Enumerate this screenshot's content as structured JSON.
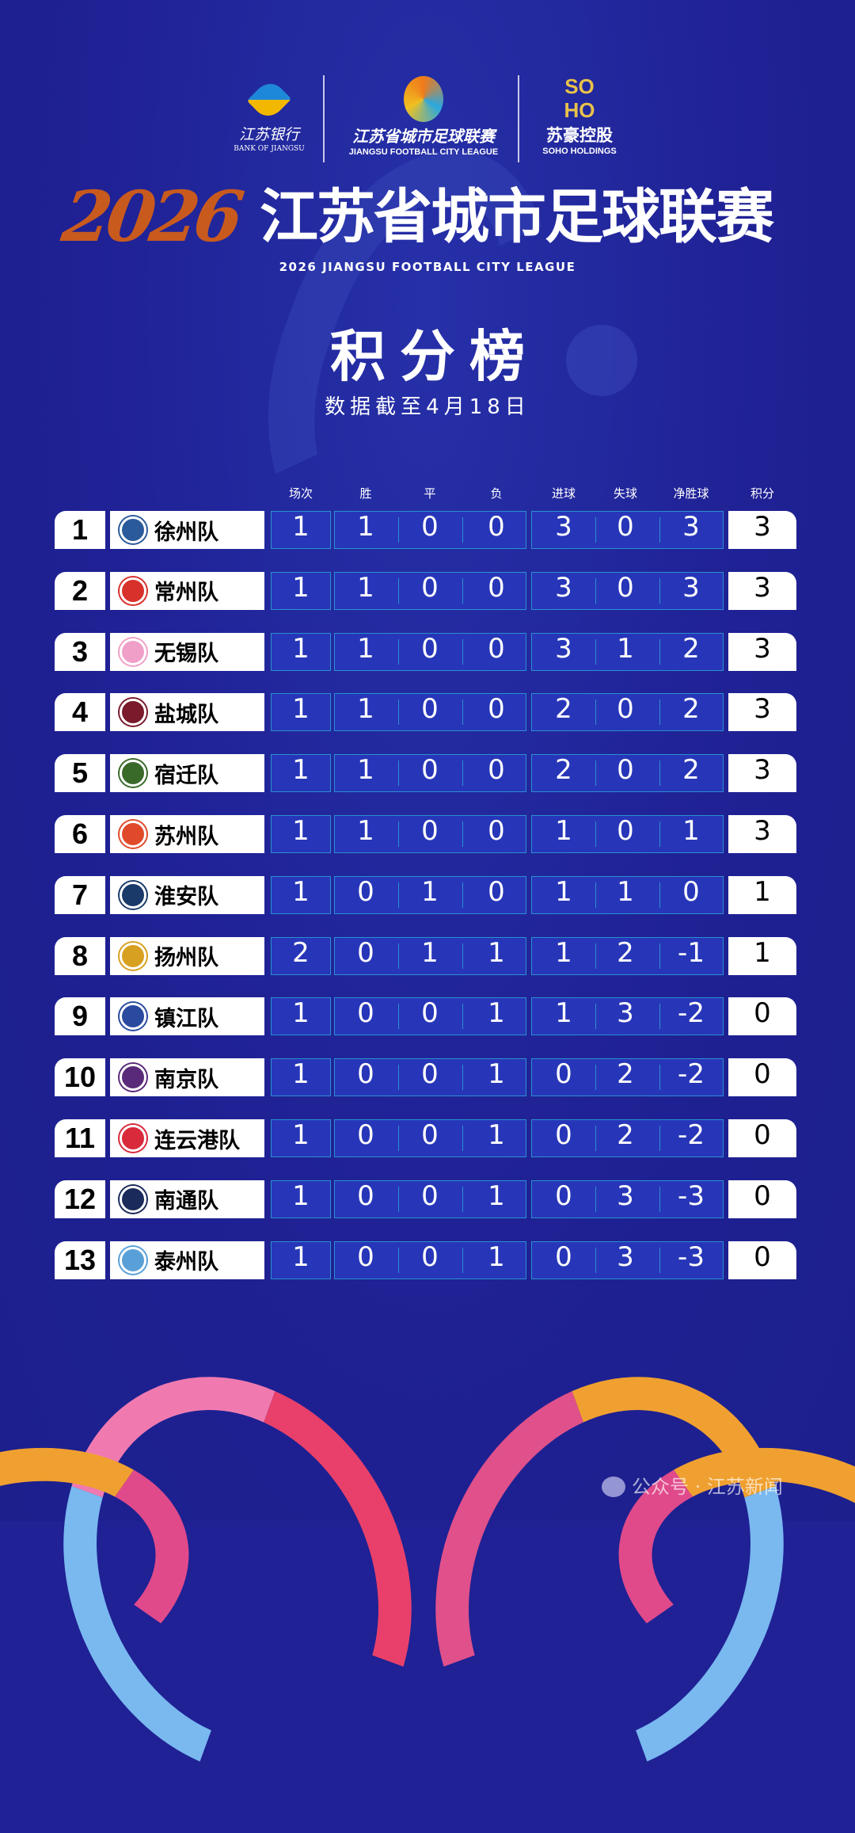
{
  "sponsors": {
    "bank_cn": "江苏银行",
    "bank_en": "BANK OF JIANGSU",
    "league_cn": "江苏省城市足球联赛",
    "league_en": "JIANGSU FOOTBALL CITY LEAGUE",
    "soho_mark_top": "SO",
    "soho_mark_bottom": "HO",
    "soho_cn": "苏豪控股",
    "soho_en": "SOHO HOLDINGS"
  },
  "title": {
    "year": "2026",
    "name": "江苏省城市足球联赛",
    "subtitle": "2026  JIANGSU FOOTBALL CITY LEAGUE"
  },
  "heading": "积分榜",
  "date_note": "数据截至4月18日",
  "columns": [
    "场次",
    "胜",
    "平",
    "负",
    "进球",
    "失球",
    "净胜球",
    "积分"
  ],
  "rows": [
    {
      "rank": "1",
      "team": "徐州队",
      "crest": "#2a5a9a",
      "p": "1",
      "w": "1",
      "d": "0",
      "l": "0",
      "gf": "3",
      "ga": "0",
      "gd": "3",
      "pts": "3"
    },
    {
      "rank": "2",
      "team": "常州队",
      "crest": "#d8302a",
      "p": "1",
      "w": "1",
      "d": "0",
      "l": "0",
      "gf": "3",
      "ga": "0",
      "gd": "3",
      "pts": "3"
    },
    {
      "rank": "3",
      "team": "无锡队",
      "crest": "#f0a0c8",
      "p": "1",
      "w": "1",
      "d": "0",
      "l": "0",
      "gf": "3",
      "ga": "1",
      "gd": "2",
      "pts": "3"
    },
    {
      "rank": "4",
      "team": "盐城队",
      "crest": "#7a1a2a",
      "p": "1",
      "w": "1",
      "d": "0",
      "l": "0",
      "gf": "2",
      "ga": "0",
      "gd": "2",
      "pts": "3"
    },
    {
      "rank": "5",
      "team": "宿迁队",
      "crest": "#3a6a2a",
      "p": "1",
      "w": "1",
      "d": "0",
      "l": "0",
      "gf": "2",
      "ga": "0",
      "gd": "2",
      "pts": "3"
    },
    {
      "rank": "6",
      "team": "苏州队",
      "crest": "#e04a2a",
      "p": "1",
      "w": "1",
      "d": "0",
      "l": "0",
      "gf": "1",
      "ga": "0",
      "gd": "1",
      "pts": "3"
    },
    {
      "rank": "7",
      "team": "淮安队",
      "crest": "#1a3a6a",
      "p": "1",
      "w": "0",
      "d": "1",
      "l": "0",
      "gf": "1",
      "ga": "1",
      "gd": "0",
      "pts": "1"
    },
    {
      "rank": "8",
      "team": "扬州队",
      "crest": "#d8a020",
      "p": "2",
      "w": "0",
      "d": "1",
      "l": "1",
      "gf": "1",
      "ga": "2",
      "gd": "-1",
      "pts": "1"
    },
    {
      "rank": "9",
      "team": "镇江队",
      "crest": "#2a4aa0",
      "p": "1",
      "w": "0",
      "d": "0",
      "l": "1",
      "gf": "1",
      "ga": "3",
      "gd": "-2",
      "pts": "0"
    },
    {
      "rank": "10",
      "team": "南京队",
      "crest": "#5a2a7a",
      "p": "1",
      "w": "0",
      "d": "0",
      "l": "1",
      "gf": "0",
      "ga": "2",
      "gd": "-2",
      "pts": "0"
    },
    {
      "rank": "11",
      "team": "连云港队",
      "crest": "#d82a3a",
      "p": "1",
      "w": "0",
      "d": "0",
      "l": "1",
      "gf": "0",
      "ga": "2",
      "gd": "-2",
      "pts": "0"
    },
    {
      "rank": "12",
      "team": "南通队",
      "crest": "#1a2a5a",
      "p": "1",
      "w": "0",
      "d": "0",
      "l": "1",
      "gf": "0",
      "ga": "3",
      "gd": "-3",
      "pts": "0"
    },
    {
      "rank": "13",
      "team": "泰州队",
      "crest": "#5aa0d8",
      "p": "1",
      "w": "0",
      "d": "0",
      "l": "1",
      "gf": "0",
      "ga": "3",
      "gd": "-3",
      "pts": "0"
    }
  ],
  "watermark": "公众号 · 江苏新闻",
  "colors": {
    "background": "#1f2194",
    "cell_fill": "#2736b8",
    "cell_border": "#2a8fd0",
    "year_orange": "#c85a1e"
  }
}
